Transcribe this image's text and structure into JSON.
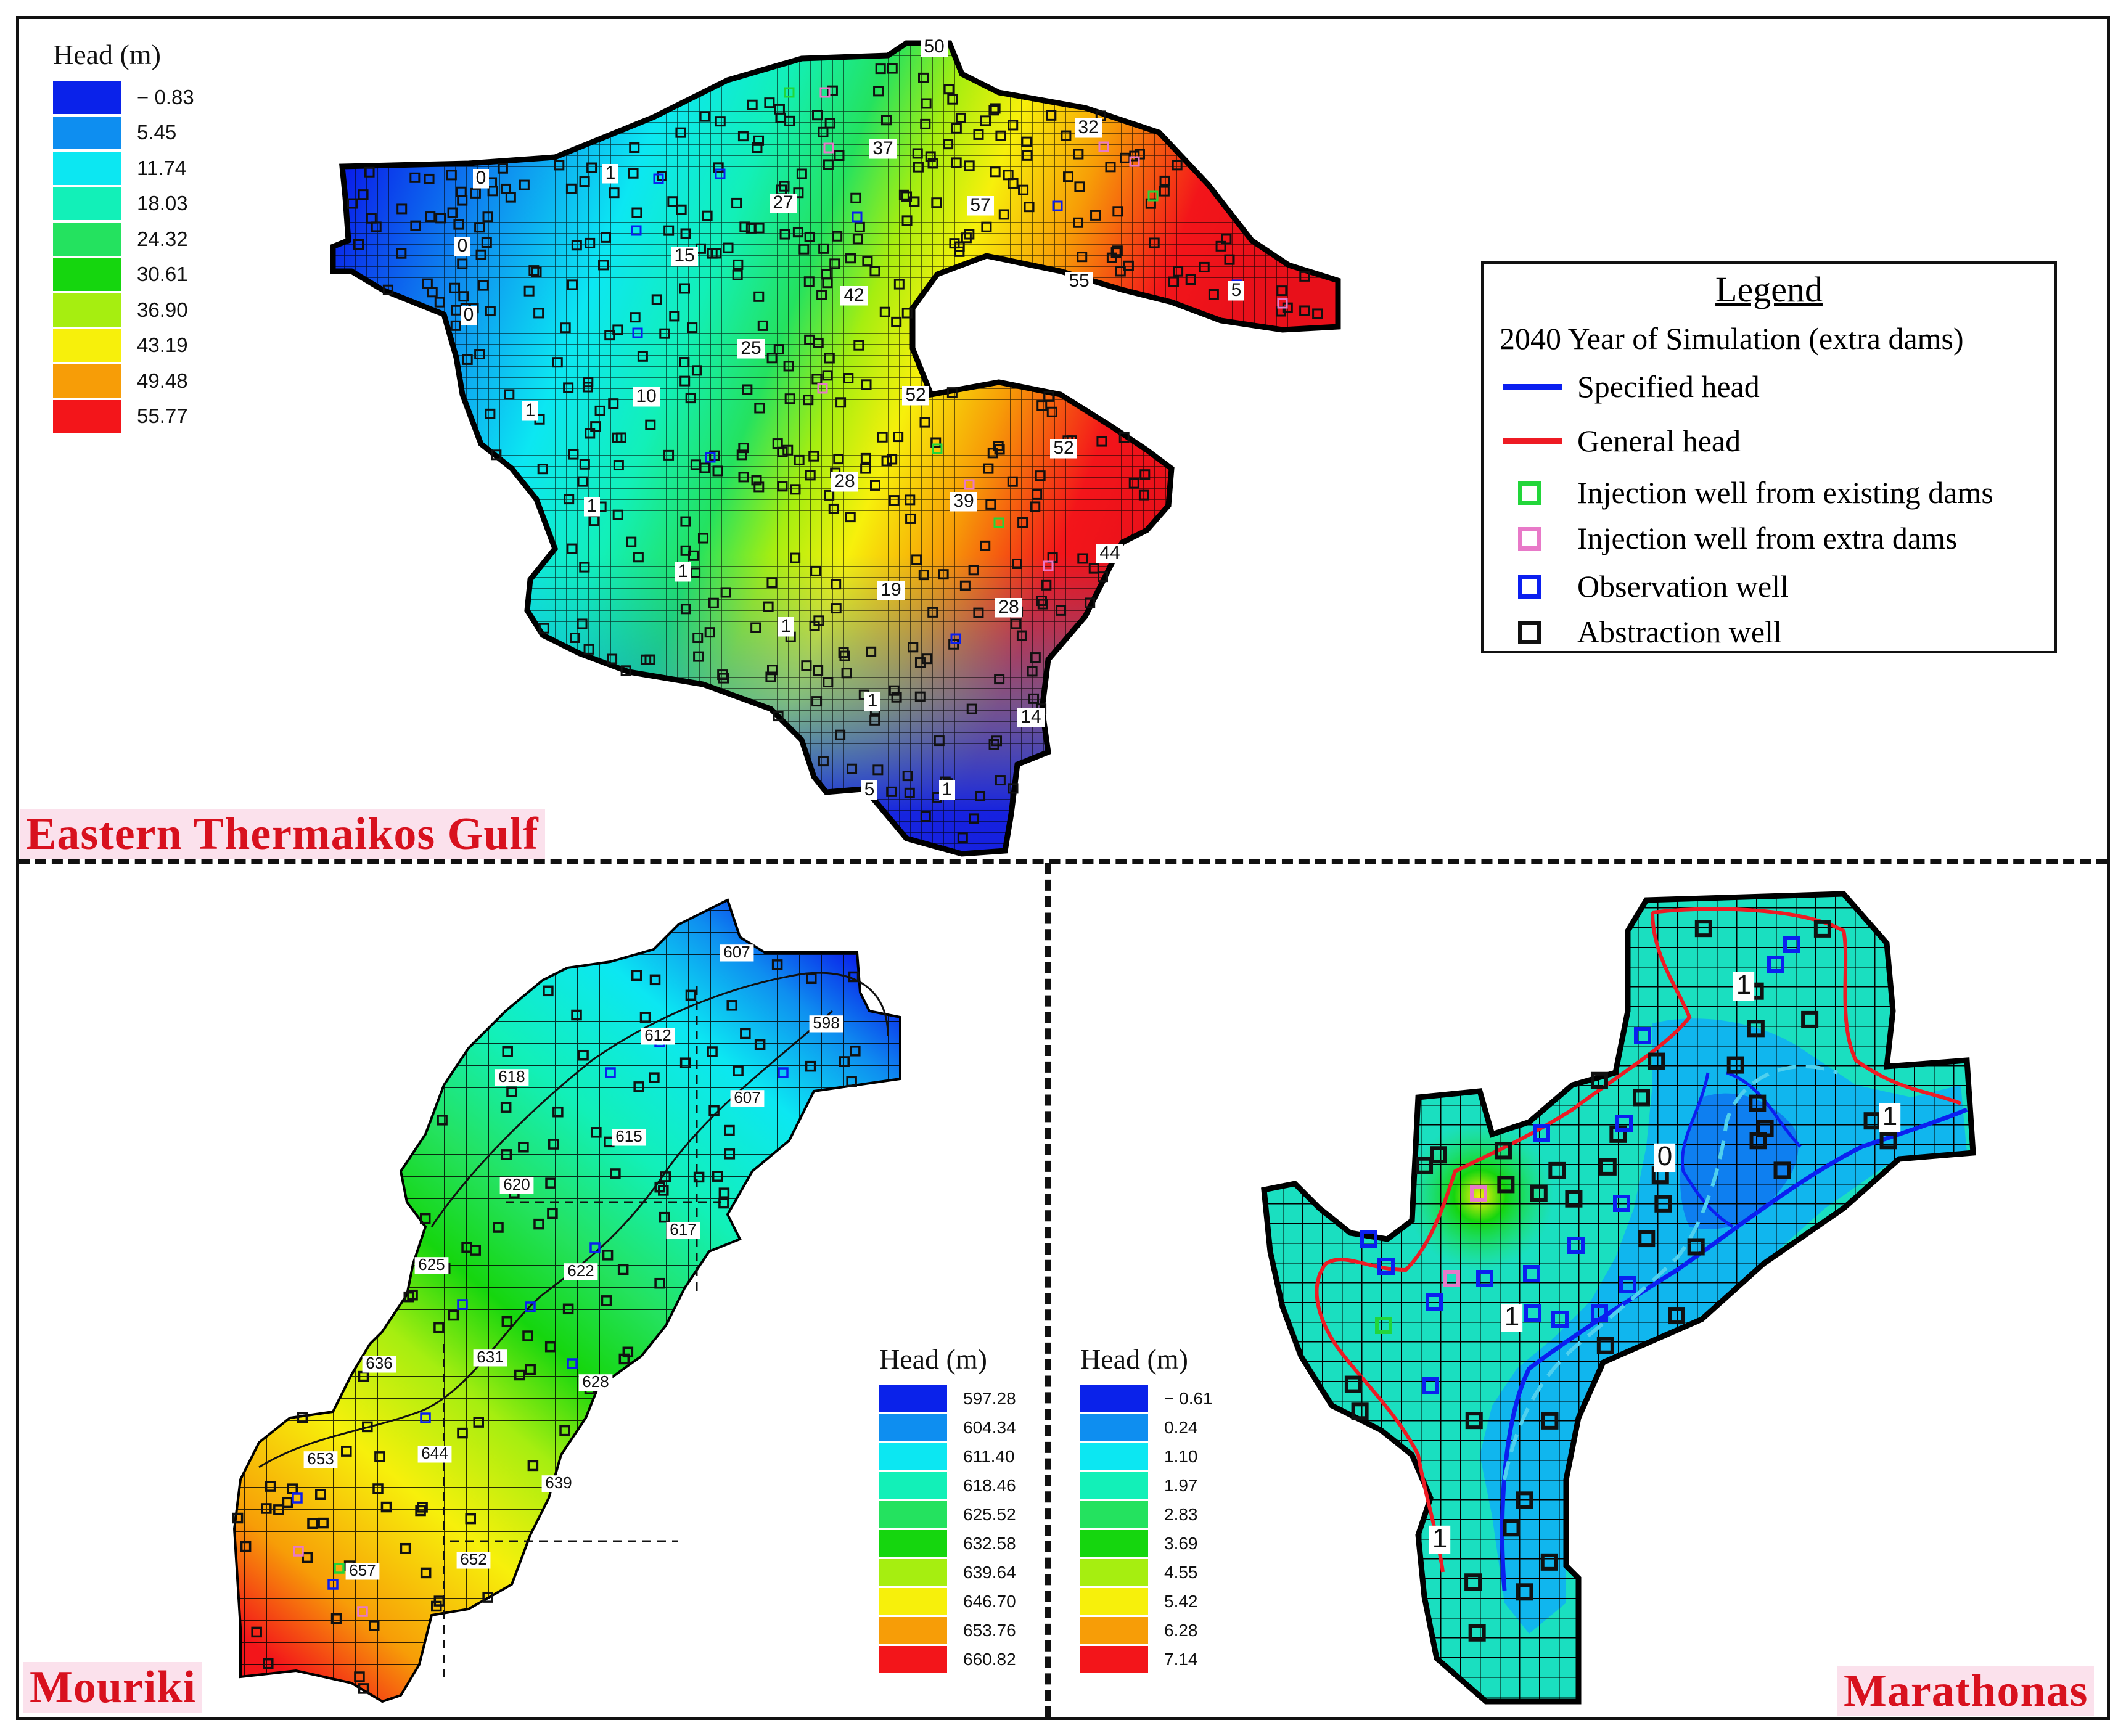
{
  "panels": {
    "eastern": {
      "title": "Eastern Thermaikos Gulf",
      "scale": {
        "title": "Head (m)",
        "entries": [
          {
            "label": "− 0.83",
            "color": "#0a22ea"
          },
          {
            "label": "5.45",
            "color": "#0e8ef0"
          },
          {
            "label": "11.74",
            "color": "#0ce7f2"
          },
          {
            "label": "18.03",
            "color": "#12f0b8"
          },
          {
            "label": "24.32",
            "color": "#24e25f"
          },
          {
            "label": "30.61",
            "color": "#15d60e"
          },
          {
            "label": "36.90",
            "color": "#a6ee10"
          },
          {
            "label": "43.19",
            "color": "#f7f00b"
          },
          {
            "label": "49.48",
            "color": "#f79d07"
          },
          {
            "label": "55.77",
            "color": "#f3151a"
          }
        ]
      },
      "contour_labels": [
        "50",
        "0",
        "1",
        "37",
        "27",
        "32",
        "57",
        "15",
        "42",
        "55",
        "0",
        "25",
        "52",
        "10",
        "1",
        "52",
        "28",
        "39",
        "44",
        "1",
        "19",
        "28",
        "1",
        "14",
        "1",
        "1",
        "5",
        "1",
        "0",
        "5"
      ]
    },
    "mouriki": {
      "title": "Mouriki",
      "scale": {
        "title": "Head (m)",
        "entries": [
          {
            "label": "597.28",
            "color": "#0a22ea"
          },
          {
            "label": "604.34",
            "color": "#0e8ef0"
          },
          {
            "label": "611.40",
            "color": "#0ce7f2"
          },
          {
            "label": "618.46",
            "color": "#12f0b8"
          },
          {
            "label": "625.52",
            "color": "#24e25f"
          },
          {
            "label": "632.58",
            "color": "#15d60e"
          },
          {
            "label": "639.64",
            "color": "#a6ee10"
          },
          {
            "label": "646.70",
            "color": "#f7f00b"
          },
          {
            "label": "653.76",
            "color": "#f79d07"
          },
          {
            "label": "660.82",
            "color": "#f3151a"
          }
        ]
      },
      "contour_labels": [
        "607",
        "598",
        "612",
        "618",
        "607",
        "615",
        "620",
        "617",
        "625",
        "622",
        "636",
        "631",
        "628",
        "644",
        "639",
        "653",
        "657",
        "652"
      ]
    },
    "marathonas": {
      "title": "Marathonas",
      "scale": {
        "title": "Head (m)",
        "entries": [
          {
            "label": "− 0.61",
            "color": "#0a22ea"
          },
          {
            "label": "0.24",
            "color": "#0e8ef0"
          },
          {
            "label": "1.10",
            "color": "#0ce7f2"
          },
          {
            "label": "1.97",
            "color": "#12f0b8"
          },
          {
            "label": "2.83",
            "color": "#24e25f"
          },
          {
            "label": "3.69",
            "color": "#15d60e"
          },
          {
            "label": "4.55",
            "color": "#a6ee10"
          },
          {
            "label": "5.42",
            "color": "#f7f00b"
          },
          {
            "label": "6.28",
            "color": "#f79d07"
          },
          {
            "label": "7.14",
            "color": "#f3151a"
          }
        ]
      },
      "contour_labels": [
        "1",
        "1",
        "0",
        "1",
        "1"
      ]
    }
  },
  "legend": {
    "title": "Legend",
    "subtitle": "2040 Year of Simulation (extra dams)",
    "items": [
      {
        "label": "Specified head",
        "kind": "line",
        "color": "#0b1ff0"
      },
      {
        "label": "General head",
        "kind": "line",
        "color": "#ee1b24"
      },
      {
        "label": "Injection well from existing dams",
        "kind": "square",
        "color": "#22d63a"
      },
      {
        "label": "Injection well from extra dams",
        "kind": "square",
        "color": "#e879c8"
      },
      {
        "label": "Observation well",
        "kind": "square",
        "color": "#0b1ff0"
      },
      {
        "label": "Abstraction well",
        "kind": "square",
        "color": "#111111"
      }
    ]
  }
}
